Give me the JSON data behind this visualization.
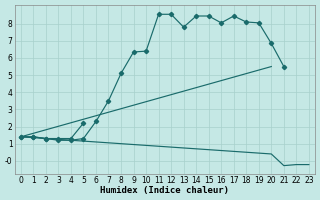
{
  "xlabel": "Humidex (Indice chaleur)",
  "bg_color": "#c5e8e5",
  "line_color": "#1a6b6b",
  "grid_color": "#a8d0cc",
  "xlim": [
    -0.5,
    23.5
  ],
  "ylim": [
    -0.75,
    9.1
  ],
  "xticks": [
    0,
    1,
    2,
    3,
    4,
    5,
    6,
    7,
    8,
    9,
    10,
    11,
    12,
    13,
    14,
    15,
    16,
    17,
    18,
    19,
    20,
    21,
    22,
    23
  ],
  "yticks": [
    0,
    1,
    2,
    3,
    4,
    5,
    6,
    7,
    8
  ],
  "ytick_labels": [
    "-0",
    "1",
    "2",
    "3",
    "4",
    "5",
    "6",
    "7",
    "8"
  ],
  "curve1_x": [
    0,
    1,
    2,
    3,
    4,
    5,
    6,
    7,
    8,
    9,
    10,
    11,
    12,
    13,
    14,
    15,
    16,
    17,
    18,
    19,
    20,
    21
  ],
  "curve1_y": [
    1.4,
    1.4,
    1.3,
    1.2,
    1.2,
    1.3,
    2.3,
    3.5,
    5.1,
    6.35,
    6.4,
    8.55,
    8.55,
    7.8,
    8.45,
    8.45,
    8.05,
    8.45,
    8.1,
    8.05,
    6.85,
    5.5
  ],
  "curve2_x": [
    0,
    20
  ],
  "curve2_y": [
    1.4,
    5.5
  ],
  "curve3_x": [
    0,
    1,
    2,
    3,
    4,
    5,
    6,
    7,
    8,
    9,
    10,
    11,
    12,
    13,
    14,
    15,
    16,
    17,
    18,
    19,
    20,
    21,
    22,
    23
  ],
  "curve3_y": [
    1.4,
    1.35,
    1.3,
    1.25,
    1.2,
    1.15,
    1.1,
    1.05,
    1.0,
    0.95,
    0.9,
    0.85,
    0.8,
    0.75,
    0.7,
    0.65,
    0.6,
    0.55,
    0.5,
    0.45,
    0.4,
    -0.28,
    -0.22,
    -0.22
  ],
  "curve4_x": [
    0,
    1,
    2,
    3,
    4,
    5
  ],
  "curve4_y": [
    1.4,
    1.4,
    1.3,
    1.3,
    1.3,
    2.2
  ]
}
